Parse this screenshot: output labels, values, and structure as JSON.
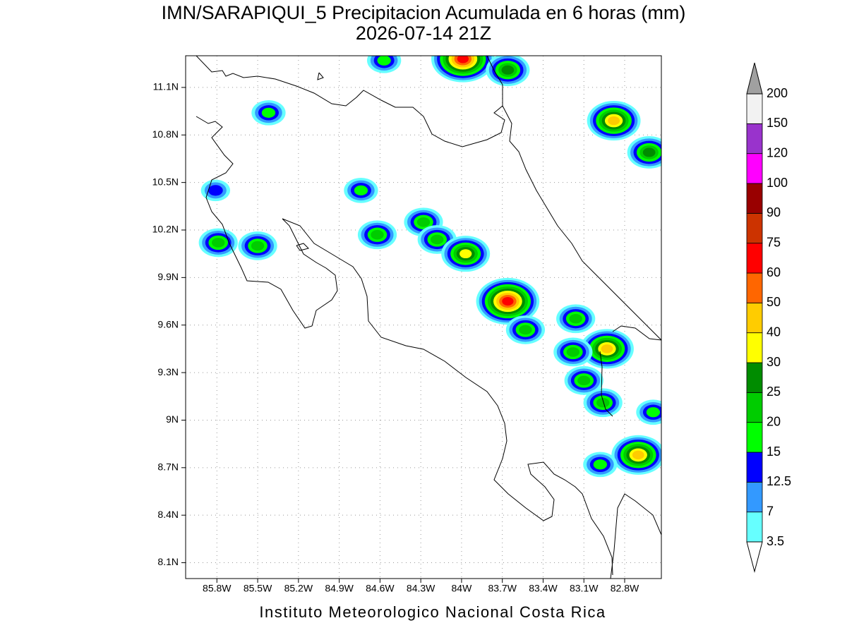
{
  "chart_data": {
    "type": "map",
    "title": "IMN/SARAPIQUI_5 Precipitacion Acumulada en 6 horas (mm)",
    "subtitle": "2026-07-14 21Z",
    "footer": "Instituto Meteorologico Nacional Costa Rica",
    "xlim": [
      -86.03,
      -82.53
    ],
    "ylim": [
      8.0,
      11.3
    ],
    "xticks": [
      {
        "value": -85.8,
        "label": "85.8W"
      },
      {
        "value": -85.5,
        "label": "85.5W"
      },
      {
        "value": -85.2,
        "label": "85.2W"
      },
      {
        "value": -84.9,
        "label": "84.9W"
      },
      {
        "value": -84.6,
        "label": "84.6W"
      },
      {
        "value": -84.3,
        "label": "84.3W"
      },
      {
        "value": -84.0,
        "label": "84W"
      },
      {
        "value": -83.7,
        "label": "83.7W"
      },
      {
        "value": -83.4,
        "label": "83.4W"
      },
      {
        "value": -83.1,
        "label": "83.1W"
      },
      {
        "value": -82.8,
        "label": "82.8W"
      }
    ],
    "yticks": [
      {
        "value": 8.1,
        "label": "8.1N"
      },
      {
        "value": 8.4,
        "label": "8.4N"
      },
      {
        "value": 8.7,
        "label": "8.7N"
      },
      {
        "value": 9.0,
        "label": "9N"
      },
      {
        "value": 9.3,
        "label": "9.3N"
      },
      {
        "value": 9.6,
        "label": "9.6N"
      },
      {
        "value": 9.9,
        "label": "9.9N"
      },
      {
        "value": 10.2,
        "label": "10.2N"
      },
      {
        "value": 10.5,
        "label": "10.5N"
      },
      {
        "value": 10.8,
        "label": "10.8N"
      },
      {
        "value": 11.1,
        "label": "11.1N"
      }
    ],
    "grid": true,
    "colorbar": {
      "levels": [
        3.5,
        7,
        12.5,
        15,
        20,
        25,
        30,
        40,
        50,
        60,
        75,
        90,
        100,
        120,
        150,
        200
      ],
      "colors": [
        "#66ffff",
        "#3399ff",
        "#0000ff",
        "#00ff00",
        "#00cc00",
        "#008c00",
        "#ffff00",
        "#ffcc00",
        "#ff6600",
        "#ff0000",
        "#cc3300",
        "#990000",
        "#ff00ff",
        "#9933cc",
        "#f2f2f2"
      ],
      "under_color": "#ffffff",
      "over_color": "#a0a0a0"
    },
    "rain_cells": [
      {
        "lon": -83.99,
        "lat": 11.28,
        "max": 60
      },
      {
        "lon": -83.66,
        "lat": 11.21,
        "max": 25
      },
      {
        "lon": -84.57,
        "lat": 11.27,
        "max": 15
      },
      {
        "lon": -85.42,
        "lat": 10.94,
        "max": 15
      },
      {
        "lon": -82.88,
        "lat": 10.89,
        "max": 40
      },
      {
        "lon": -82.62,
        "lat": 10.69,
        "max": 25
      },
      {
        "lon": -85.79,
        "lat": 10.12,
        "max": 20
      },
      {
        "lon": -85.5,
        "lat": 10.1,
        "max": 20
      },
      {
        "lon": -84.62,
        "lat": 10.17,
        "max": 20
      },
      {
        "lon": -84.28,
        "lat": 10.25,
        "max": 20
      },
      {
        "lon": -84.18,
        "lat": 10.14,
        "max": 20
      },
      {
        "lon": -83.97,
        "lat": 10.05,
        "max": 30
      },
      {
        "lon": -83.66,
        "lat": 9.75,
        "max": 60
      },
      {
        "lon": -83.53,
        "lat": 9.57,
        "max": 20
      },
      {
        "lon": -83.16,
        "lat": 9.64,
        "max": 20
      },
      {
        "lon": -82.93,
        "lat": 9.45,
        "max": 40
      },
      {
        "lon": -83.1,
        "lat": 9.25,
        "max": 20
      },
      {
        "lon": -82.96,
        "lat": 9.11,
        "max": 20
      },
      {
        "lon": -82.7,
        "lat": 8.78,
        "max": 40
      },
      {
        "lon": -82.98,
        "lat": 8.72,
        "max": 15
      },
      {
        "lon": -82.59,
        "lat": 9.05,
        "max": 15
      },
      {
        "lon": -84.74,
        "lat": 10.45,
        "max": 15
      },
      {
        "lon": -83.18,
        "lat": 9.43,
        "max": 20
      },
      {
        "lon": -85.81,
        "lat": 10.45,
        "max": 12.5
      }
    ]
  }
}
